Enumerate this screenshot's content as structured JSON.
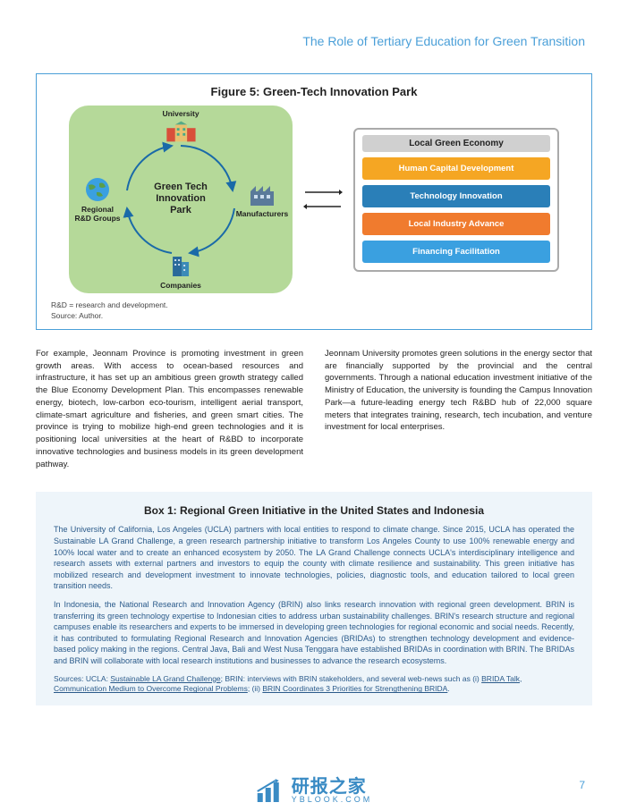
{
  "header": {
    "title": "The Role of Tertiary Education for Green Transition"
  },
  "figure": {
    "title": "Figure 5: Green-Tech Innovation Park",
    "center": "Green Tech\nInnovation\nPark",
    "nodes": {
      "top": "University",
      "left": "Regional\nR&D Groups",
      "right": "Manufacturers",
      "bottom": "Companies"
    },
    "right_panel": {
      "title": "Local Green Economy",
      "items": [
        {
          "label": "Human Capital Development",
          "color": "#f5a623"
        },
        {
          "label": "Technology Innovation",
          "color": "#2a7fb8"
        },
        {
          "label": "Local Industry Advance",
          "color": "#f07b2e"
        },
        {
          "label": "Financing Facilitation",
          "color": "#3aa0e0"
        }
      ]
    },
    "footnote1": "R&D = research and development.",
    "footnote2": "Source: Author.",
    "colors": {
      "blob_bg": "#b5d999",
      "border": "#4a9fd8"
    }
  },
  "body": {
    "left": "For example, Jeonnam Province is promoting investment in green growth areas. With access to ocean-based resources and infrastructure, it has set up an ambitious green growth strategy called the Blue Economy Development Plan. This encompasses renewable energy, biotech, low-carbon eco-tourism, intelligent aerial transport, climate-smart agriculture and fisheries, and green smart cities. The province is trying to mobilize high-end green technologies and it is positioning local universities at the heart of R&BD to incorporate innovative technologies and business models in its green development pathway.",
    "right": "Jeonnam University promotes green solutions in the energy sector that are financially supported by the provincial and the central governments. Through a national education investment initiative of the Ministry of Education, the university is founding the Campus Innovation Park—a future-leading energy tech R&BD hub of 22,000 square meters that integrates training, research, tech incubation, and venture investment for local enterprises."
  },
  "box": {
    "title": "Box 1: Regional Green Initiative in the United States and Indonesia",
    "para1": "The University of California, Los Angeles (UCLA) partners with local entities to respond to climate change. Since 2015, UCLA has operated the Sustainable LA Grand Challenge, a green research partnership initiative to transform Los Angeles County to use 100% renewable energy and 100% local water and to create an enhanced ecosystem by 2050. The LA Grand Challenge connects UCLA's interdisciplinary intelligence and research assets with external partners and investors to equip the county with climate resilience and sustainability. This green initiative has mobilized research and development investment to innovate technologies, policies, diagnostic tools, and education tailored to local green transition needs.",
    "para2": "In Indonesia, the National Research and Innovation Agency (BRIN) also links research innovation with regional green development. BRIN is transferring its green technology expertise to Indonesian cities to address urban sustainability challenges. BRIN's research structure and regional campuses enable its researchers and experts to be immersed in developing green technologies for regional economic and social needs. Recently, it has contributed to formulating Regional Research and Innovation Agencies (BRIDAs) to strengthen technology development and evidence-based policy making in the regions. Central Java, Bali and West Nusa Tenggara have established BRIDAs in coordination with BRIN. The BRIDAs and BRIN will collaborate with local research institutions and businesses to advance the research ecosystems.",
    "sources_prefix": "Sources: UCLA: ",
    "sources_link1": "Sustainable LA Grand Challenge",
    "sources_mid1": "; BRIN: interviews with BRIN stakeholders, and several web-news such as (i) ",
    "sources_link2": "BRIDA Talk, Communication Medium to Overcome Regional Problems",
    "sources_mid2": "; (ii) ",
    "sources_link3": "BRIN Coordinates 3 Priorities for Strengthening BRIDA",
    "sources_end": "."
  },
  "page_number": "7",
  "watermark": {
    "main": "研报之家",
    "sub": "YBLOOK.COM"
  }
}
